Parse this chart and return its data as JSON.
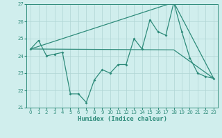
{
  "xlabel": "Humidex (Indice chaleur)",
  "xlim": [
    -0.5,
    23.5
  ],
  "ylim": [
    21,
    27
  ],
  "yticks": [
    21,
    22,
    23,
    24,
    25,
    26,
    27
  ],
  "xticks": [
    0,
    1,
    2,
    3,
    4,
    5,
    6,
    7,
    8,
    9,
    10,
    11,
    12,
    13,
    14,
    15,
    16,
    17,
    18,
    19,
    20,
    21,
    22,
    23
  ],
  "line1_x": [
    0,
    1,
    2,
    3,
    4,
    5,
    6,
    7,
    8,
    9,
    10,
    11,
    12,
    13,
    14,
    15,
    16,
    17,
    18,
    19,
    20,
    21,
    22,
    23
  ],
  "line1_y": [
    24.4,
    24.9,
    24.0,
    24.1,
    24.2,
    21.8,
    21.8,
    21.3,
    22.6,
    23.2,
    23.0,
    23.5,
    23.5,
    25.0,
    24.4,
    26.1,
    25.4,
    25.2,
    27.1,
    25.4,
    23.9,
    23.0,
    22.8,
    22.7
  ],
  "line2_x": [
    0,
    18,
    23
  ],
  "line2_y": [
    24.4,
    27.1,
    22.7
  ],
  "line3_x": [
    0,
    18,
    23
  ],
  "line3_y": [
    24.4,
    24.35,
    22.7
  ],
  "color": "#2e8b7a",
  "bg_color": "#d0eeed",
  "grid_color": "#b0d5d4"
}
